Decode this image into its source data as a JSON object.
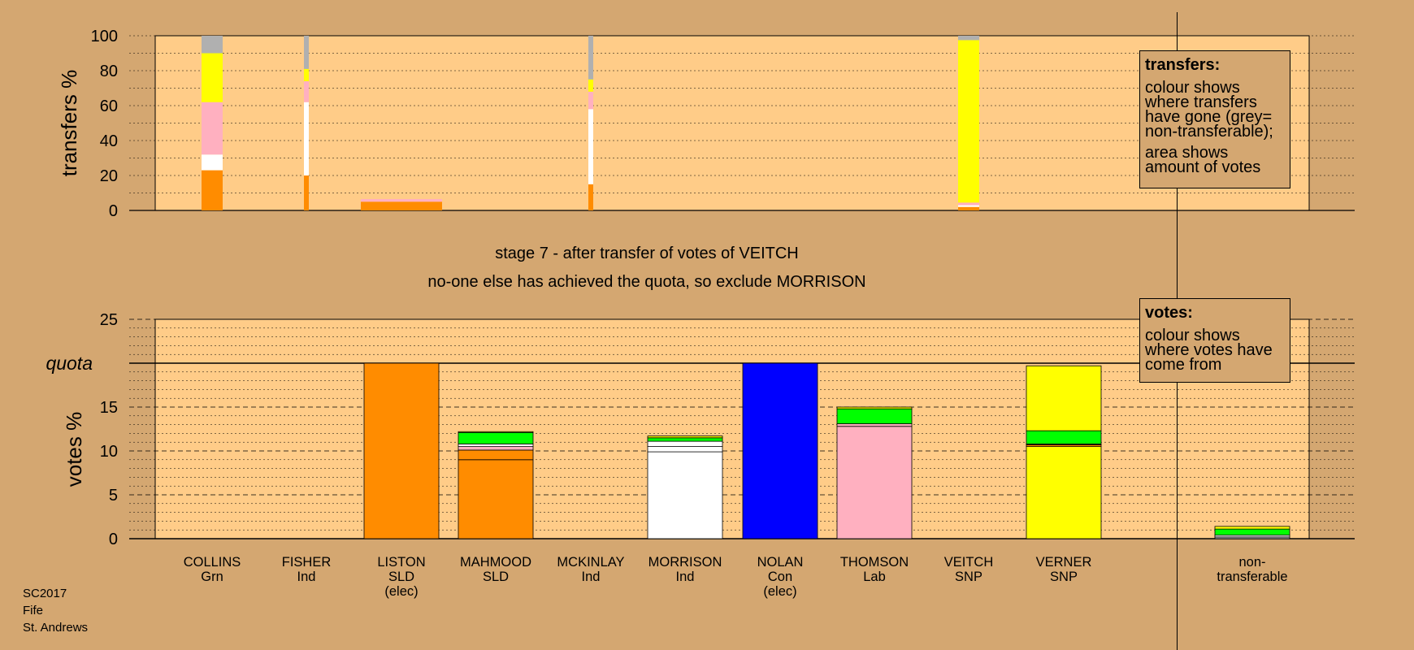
{
  "chart_data": {
    "type": "bar",
    "heading": {
      "line1": "stage 7 - after transfer of votes of VEITCH",
      "line2": "no-one else has achieved the quota, so exclude MORRISON"
    },
    "footer": [
      "SC2017",
      "Fife",
      "St. Andrews"
    ],
    "candidates": [
      {
        "name": "COLLINS",
        "party": "Grn",
        "note": ""
      },
      {
        "name": "FISHER",
        "party": "Ind",
        "note": ""
      },
      {
        "name": "LISTON",
        "party": "SLD",
        "note": "(elec)"
      },
      {
        "name": "MAHMOOD",
        "party": "SLD",
        "note": ""
      },
      {
        "name": "MCKINLAY",
        "party": "Ind",
        "note": ""
      },
      {
        "name": "MORRISON",
        "party": "Ind",
        "note": ""
      },
      {
        "name": "NOLAN",
        "party": "Con",
        "note": "(elec)"
      },
      {
        "name": "THOMSON",
        "party": "Lab",
        "note": ""
      },
      {
        "name": "VEITCH",
        "party": "SNP",
        "note": ""
      },
      {
        "name": "VERNER",
        "party": "SNP",
        "note": ""
      }
    ],
    "nontransferable_label": [
      "non-",
      "transferable"
    ],
    "colors": {
      "SLD": "#ff8c00",
      "Ind": "#ffffff",
      "Con": "#0000ff",
      "Lab": "#ffb0c0",
      "SNP": "#ffff00",
      "Grn": "#00ff00",
      "nontransferable": "#b0b0b0",
      "plot_bg": "#ffcc88",
      "page_bg": "#d4a771"
    },
    "transfers_chart": {
      "ylabel": "transfers %",
      "yticks": [
        0,
        20,
        40,
        60,
        80,
        100
      ],
      "ylim": [
        0,
        100
      ],
      "bars": [
        {
          "candidate": "COLLINS",
          "width": "wide",
          "segments": [
            {
              "party": "SLD",
              "value": 23
            },
            {
              "party": "Ind",
              "value": 9
            },
            {
              "party": "Lab",
              "value": 30
            },
            {
              "party": "SNP",
              "value": 28
            },
            {
              "party": "nontransferable",
              "value": 10
            }
          ]
        },
        {
          "candidate": "FISHER",
          "width": "thin",
          "segments": [
            {
              "party": "SLD",
              "value": 20
            },
            {
              "party": "Ind",
              "value": 42
            },
            {
              "party": "Lab",
              "value": 12
            },
            {
              "party": "SNP",
              "value": 7
            },
            {
              "party": "nontransferable",
              "value": 19
            }
          ]
        },
        {
          "candidate": "LISTON",
          "width": "full",
          "segments": [
            {
              "party": "SLD",
              "value": 5
            },
            {
              "party": "Lab",
              "value": 1.5
            }
          ]
        },
        {
          "candidate": "MCKINLAY",
          "width": "thin",
          "segments": [
            {
              "party": "SLD",
              "value": 15
            },
            {
              "party": "Ind",
              "value": 43
            },
            {
              "party": "Lab",
              "value": 10
            },
            {
              "party": "SNP",
              "value": 7
            },
            {
              "party": "nontransferable",
              "value": 25
            }
          ]
        },
        {
          "candidate": "VEITCH",
          "width": "wide",
          "segments": [
            {
              "party": "SLD",
              "value": 2
            },
            {
              "party": "Ind",
              "value": 1
            },
            {
              "party": "Lab",
              "value": 1.5
            },
            {
              "party": "SNP",
              "value": 93
            },
            {
              "party": "nontransferable",
              "value": 2.5
            }
          ]
        }
      ],
      "legend": {
        "title": "transfers:",
        "text1": "colour shows where transfers have gone (grey= non-transferable);",
        "text2": "area shows amount of votes"
      }
    },
    "votes_chart": {
      "ylabel": "votes %",
      "yticks": [
        0,
        5,
        10,
        15,
        20,
        25
      ],
      "ylim": [
        0,
        25
      ],
      "quota": 20,
      "quota_label": "quota",
      "bars": [
        {
          "candidate": "LISTON",
          "segments": [
            {
              "party": "SLD",
              "value": 20
            }
          ]
        },
        {
          "candidate": "MAHMOOD",
          "segments": [
            {
              "party": "SLD",
              "value": 9
            },
            {
              "party": "SLD",
              "value": 1.1
            },
            {
              "party": "Lab",
              "value": 0.4
            },
            {
              "party": "Ind",
              "value": 0.3
            },
            {
              "party": "Grn",
              "value": 1.3
            },
            {
              "party": "SNP",
              "value": 0.1
            }
          ]
        },
        {
          "candidate": "MORRISON",
          "segments": [
            {
              "party": "Ind",
              "value": 9.9
            },
            {
              "party": "Ind",
              "value": 0.6
            },
            {
              "party": "Ind",
              "value": 0.6
            },
            {
              "party": "Grn",
              "value": 0.4
            },
            {
              "party": "SNP",
              "value": 0.2
            }
          ]
        },
        {
          "candidate": "NOLAN",
          "segments": [
            {
              "party": "Con",
              "value": 20
            }
          ]
        },
        {
          "candidate": "THOMSON",
          "segments": [
            {
              "party": "Lab",
              "value": 12.8
            },
            {
              "party": "Lab",
              "value": 0.3
            },
            {
              "party": "Grn",
              "value": 1.7
            },
            {
              "party": "SNP",
              "value": 0.2
            }
          ]
        },
        {
          "candidate": "VERNER",
          "segments": [
            {
              "party": "SNP",
              "value": 10.5
            },
            {
              "party": "SLD",
              "value": 0.2
            },
            {
              "party": "SNP",
              "value": 0.1
            },
            {
              "party": "Grn",
              "value": 1.5
            },
            {
              "party": "SNP",
              "value": 7.4
            }
          ]
        },
        {
          "candidate": "non-transferable",
          "segments": [
            {
              "party": "nontransferable",
              "value": 0.2
            },
            {
              "party": "Ind",
              "value": 0.2
            },
            {
              "party": "Grn",
              "value": 0.7
            },
            {
              "party": "SNP",
              "value": 0.3
            }
          ]
        }
      ],
      "legend": {
        "title": "votes:",
        "text1": "colour shows where votes have come from"
      }
    }
  }
}
